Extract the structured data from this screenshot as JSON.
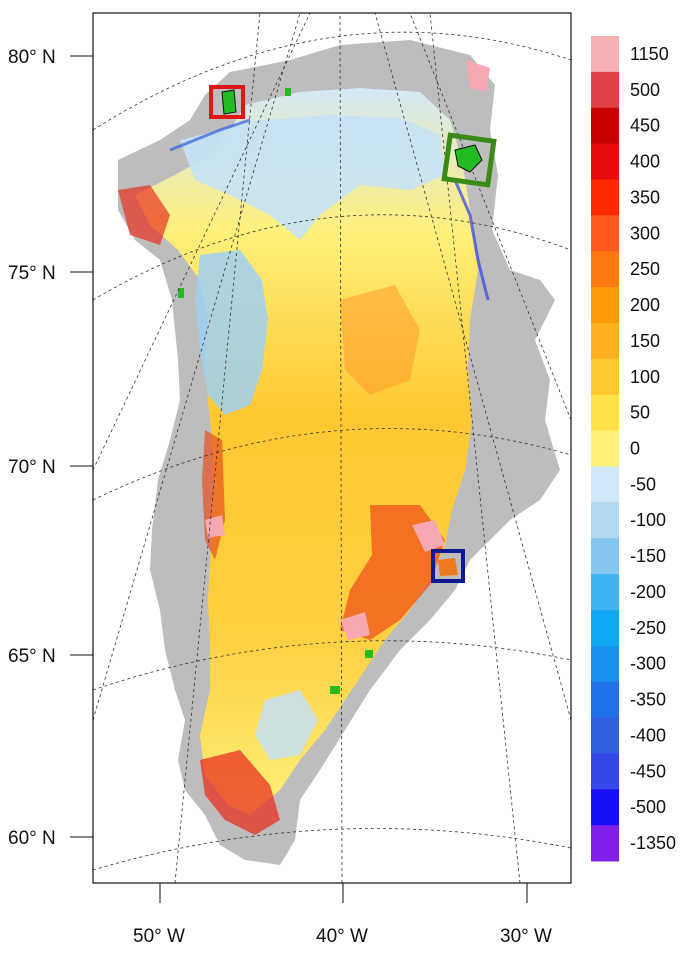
{
  "map": {
    "lat_labels": [
      "80° N",
      "75° N",
      "70° N",
      "65° N",
      "60° N"
    ],
    "lon_labels": [
      "50° W",
      "40° W",
      "30° W"
    ]
  },
  "colorbar": {
    "labels": [
      "1150",
      "500",
      "450",
      "400",
      "350",
      "300",
      "250",
      "200",
      "150",
      "100",
      "50",
      "0",
      "-50",
      "-100",
      "-150",
      "-200",
      "-250",
      "-300",
      "-350",
      "-400",
      "-450",
      "-500",
      "-1350"
    ],
    "colors": [
      "#f7b0b5",
      "#e04448",
      "#c80000",
      "#e60a0a",
      "#ff2a00",
      "#ff5a1a",
      "#ff7a10",
      "#ff9a0a",
      "#ffb020",
      "#ffc832",
      "#ffe24a",
      "#fff07a",
      "#d0e8f8",
      "#b0d8f0",
      "#86c6ee",
      "#40b4f0",
      "#10a8f2",
      "#1a90f0",
      "#2070ea",
      "#3060e0",
      "#3548e8",
      "#1a10f8",
      "#8020e8"
    ]
  },
  "markers": [
    {
      "name": "red-box",
      "color": "#e01515"
    },
    {
      "name": "green-box",
      "color": "#3a8a18"
    },
    {
      "name": "navy-box",
      "color": "#101a90"
    }
  ]
}
